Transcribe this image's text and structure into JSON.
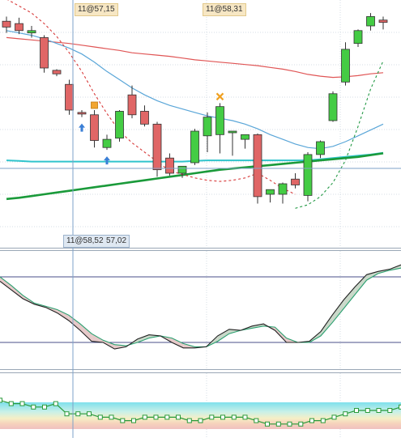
{
  "labels": {
    "top_left": "11@57,15",
    "top_mid": "11@58,31",
    "crosshair": "11@58,52",
    "crosshair_right": "57,02"
  },
  "colors": {
    "bull": "#44cc44",
    "bear": "#e06666",
    "ma_fast_dash": "#d83a3a",
    "ma_slow_red": "#e05555",
    "ma_blue": "#5aa6d8",
    "ma_cyan": "#30c4cc",
    "ma_green": "#1a9a3a",
    "dash_green": "#229944",
    "stoch_k": "#222222",
    "stoch_d": "#2aa070",
    "crosshair": "#7ea2c8",
    "grid": "#d6dde6"
  },
  "chart_data": [
    {
      "type": "candlestick",
      "candles": [
        {
          "o": 60.6,
          "h": 61.0,
          "l": 59.6,
          "c": 60.1
        },
        {
          "o": 60.4,
          "h": 60.9,
          "l": 59.5,
          "c": 59.8
        },
        {
          "o": 59.6,
          "h": 60.2,
          "l": 59.2,
          "c": 59.8
        },
        {
          "o": 59.2,
          "h": 59.4,
          "l": 56.2,
          "c": 56.6
        },
        {
          "o": 56.4,
          "h": 56.5,
          "l": 55.9,
          "c": 56.1
        },
        {
          "o": 55.2,
          "h": 55.6,
          "l": 52.6,
          "c": 53.0
        },
        {
          "o": 52.8,
          "h": 53.0,
          "l": 52.4,
          "c": 52.7
        },
        {
          "o": 52.6,
          "h": 53.0,
          "l": 49.8,
          "c": 50.4
        },
        {
          "o": 49.8,
          "h": 50.9,
          "l": 49.6,
          "c": 50.5
        },
        {
          "o": 50.6,
          "h": 53.0,
          "l": 50.3,
          "c": 52.9
        },
        {
          "o": 54.3,
          "h": 55.1,
          "l": 52.3,
          "c": 52.6
        },
        {
          "o": 52.9,
          "h": 53.4,
          "l": 51.6,
          "c": 51.8
        },
        {
          "o": 51.8,
          "h": 52.0,
          "l": 47.3,
          "c": 47.9
        },
        {
          "o": 48.9,
          "h": 49.3,
          "l": 47.4,
          "c": 47.6
        },
        {
          "o": 47.6,
          "h": 48.2,
          "l": 47.2,
          "c": 48.2
        },
        {
          "o": 48.5,
          "h": 51.4,
          "l": 48.3,
          "c": 51.2
        },
        {
          "o": 50.8,
          "h": 52.8,
          "l": 49.4,
          "c": 52.4
        },
        {
          "o": 50.9,
          "h": 53.6,
          "l": 49.3,
          "c": 53.3
        },
        {
          "o": 51.2,
          "h": 51.2,
          "l": 49.1,
          "c": 51.2
        },
        {
          "o": 50.5,
          "h": 50.9,
          "l": 49.7,
          "c": 50.9
        },
        {
          "o": 50.9,
          "h": 51.0,
          "l": 45.0,
          "c": 45.6
        },
        {
          "o": 45.8,
          "h": 46.2,
          "l": 45.1,
          "c": 46.2
        },
        {
          "o": 45.8,
          "h": 46.8,
          "l": 45.0,
          "c": 46.7
        },
        {
          "o": 47.1,
          "h": 47.6,
          "l": 46.3,
          "c": 46.6
        },
        {
          "o": 45.7,
          "h": 49.4,
          "l": 45.2,
          "c": 49.2
        },
        {
          "o": 49.2,
          "h": 50.4,
          "l": 48.9,
          "c": 50.3
        },
        {
          "o": 52.1,
          "h": 54.6,
          "l": 52.0,
          "c": 54.4
        },
        {
          "o": 55.4,
          "h": 58.8,
          "l": 55.1,
          "c": 58.2
        },
        {
          "o": 58.7,
          "h": 59.9,
          "l": 58.4,
          "c": 59.8
        },
        {
          "o": 60.2,
          "h": 61.3,
          "l": 59.8,
          "c": 61.0
        },
        {
          "o": 60.7,
          "h": 61.0,
          "l": 59.9,
          "c": 60.5
        }
      ],
      "moving_averages": [
        {
          "color": "#e05555",
          "values": [
            59.2,
            59.1,
            59.0,
            58.9,
            58.8,
            58.7,
            58.55,
            58.4,
            58.25,
            58.1,
            57.9,
            57.8,
            57.7,
            57.6,
            57.45,
            57.3,
            57.2,
            57.1,
            57.0,
            56.9,
            56.8,
            56.65,
            56.5,
            56.3,
            56.05,
            55.9,
            55.8,
            55.85,
            55.95,
            56.1,
            56.2
          ]
        },
        {
          "color": "#5aa6d8",
          "values": [
            59.8,
            59.6,
            59.4,
            59.1,
            58.7,
            58.3,
            57.8,
            57.1,
            56.3,
            55.6,
            54.9,
            54.3,
            53.8,
            53.4,
            53.1,
            52.8,
            52.5,
            52.3,
            52.1,
            51.8,
            51.4,
            50.9,
            50.5,
            50.1,
            49.8,
            49.7,
            49.9,
            50.3,
            50.8,
            51.3,
            51.8
          ]
        },
        {
          "color": "#30c4cc",
          "values": [
            48.7,
            48.65,
            48.6,
            48.6,
            48.6,
            48.6,
            48.6,
            48.6,
            48.6,
            48.6,
            48.6,
            48.6,
            48.6,
            48.6,
            48.6,
            48.65,
            48.7,
            48.7,
            48.7,
            48.7,
            48.7,
            48.7,
            48.7,
            48.7,
            48.7,
            48.8,
            48.9,
            49.0,
            49.1,
            49.2,
            49.35
          ]
        },
        {
          "color": "#1a9a3a",
          "values": [
            45.4,
            45.5,
            45.65,
            45.8,
            45.95,
            46.1,
            46.25,
            46.4,
            46.55,
            46.7,
            46.85,
            47.0,
            47.15,
            47.3,
            47.45,
            47.6,
            47.75,
            47.9,
            48.0,
            48.1,
            48.2,
            48.3,
            48.4,
            48.5,
            48.6,
            48.7,
            48.8,
            48.9,
            49.0,
            49.15,
            49.3
          ]
        }
      ],
      "trailing_stops": [
        {
          "color": "#d83a3a",
          "values": [
            62.5,
            61.9,
            61.3,
            60.4,
            59.3,
            57.9,
            56.3,
            54.4,
            52.7,
            51.2,
            50.2,
            49.4,
            48.6,
            47.8,
            47.5,
            47.2,
            47.0,
            46.9,
            47.0,
            47.2,
            47.6,
            47.0,
            46.3,
            45.8,
            null,
            null,
            null,
            null,
            null,
            null,
            null
          ]
        },
        {
          "color": "#229944",
          "values": [
            null,
            null,
            null,
            null,
            null,
            null,
            null,
            null,
            null,
            null,
            null,
            null,
            null,
            null,
            null,
            null,
            null,
            null,
            null,
            null,
            null,
            null,
            null,
            44.6,
            44.9,
            45.6,
            46.8,
            48.7,
            51.6,
            54.8,
            57.2
          ]
        }
      ],
      "markers": [
        {
          "type": "arrow-up",
          "bar": 6
        },
        {
          "type": "arrow-up",
          "bar": 8
        },
        {
          "type": "square",
          "bar": 7
        },
        {
          "type": "cross",
          "bar": 17
        }
      ]
    },
    {
      "type": "line",
      "ylim": [
        0,
        100
      ],
      "levels": [
        80,
        20
      ],
      "series": [
        {
          "values": [
            76,
            68,
            60,
            55,
            52,
            47,
            40,
            31,
            21,
            20,
            14,
            16,
            23,
            27,
            26,
            20,
            15,
            15,
            16,
            26,
            32,
            31,
            35,
            37,
            31,
            20,
            20,
            21,
            30,
            45,
            59,
            71,
            82,
            85,
            87,
            91
          ]
        },
        {
          "values": [
            80,
            72,
            63,
            56,
            53,
            50,
            45,
            37,
            28,
            22,
            18,
            17,
            20,
            24,
            26,
            24,
            19,
            16,
            16,
            21,
            28,
            31,
            33,
            35,
            34,
            24,
            20,
            20,
            26,
            38,
            51,
            64,
            77,
            83,
            86,
            88
          ]
        }
      ]
    },
    {
      "type": "line",
      "series": [
        {
          "values": [
            8,
            7,
            7,
            6,
            6,
            7,
            4,
            4,
            4,
            3,
            3,
            2,
            2,
            3,
            3,
            3,
            3,
            2,
            2,
            3,
            3,
            3,
            3,
            2,
            1,
            1,
            1,
            1,
            2,
            2,
            3,
            4,
            5,
            5,
            5,
            5,
            6
          ]
        }
      ]
    }
  ]
}
